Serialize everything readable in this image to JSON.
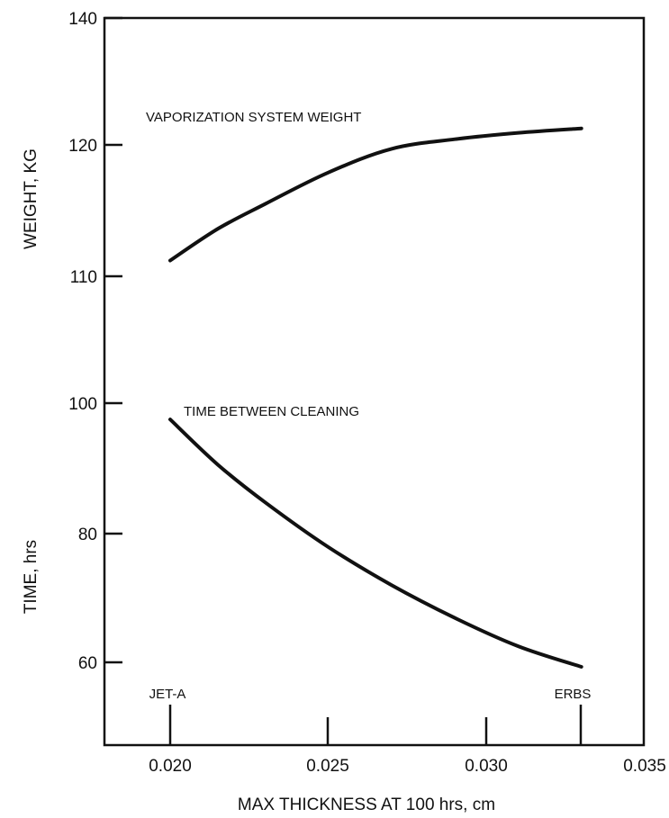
{
  "chart_data": {
    "type": "line",
    "xlabel": "MAX THICKNESS AT 100 hrs, cm",
    "x_ticks": [
      "0.020",
      "0.025",
      "0.030",
      "0.035"
    ],
    "xlim": [
      0.0178,
      0.035
    ],
    "ylabels": {
      "weight": "WEIGHT, KG",
      "time": "TIME, hrs"
    },
    "y_ticks_upper": [
      "140",
      "120",
      "110"
    ],
    "y_ticks_lower": [
      "100",
      "80",
      "60"
    ],
    "grid": false,
    "series": [
      {
        "name": "VAPORIZATION SYSTEM WEIGHT",
        "axis": "weight",
        "x": [
          0.02,
          0.0215,
          0.023,
          0.025,
          0.027,
          0.029,
          0.031,
          0.033
        ],
        "y": [
          111.2,
          113.6,
          115.5,
          117.9,
          119.7,
          120.9,
          121.9,
          122.6
        ]
      },
      {
        "name": "TIME BETWEEN CLEANING",
        "axis": "time",
        "x": [
          0.02,
          0.0215,
          0.023,
          0.025,
          0.027,
          0.029,
          0.031,
          0.033
        ],
        "y": [
          97.5,
          90.6,
          84.8,
          77.9,
          72.0,
          66.9,
          62.5,
          59.3
        ]
      }
    ],
    "markers": [
      {
        "label": "JET-A",
        "x": 0.02
      },
      {
        "label": "ERBS",
        "x": 0.033
      }
    ]
  }
}
